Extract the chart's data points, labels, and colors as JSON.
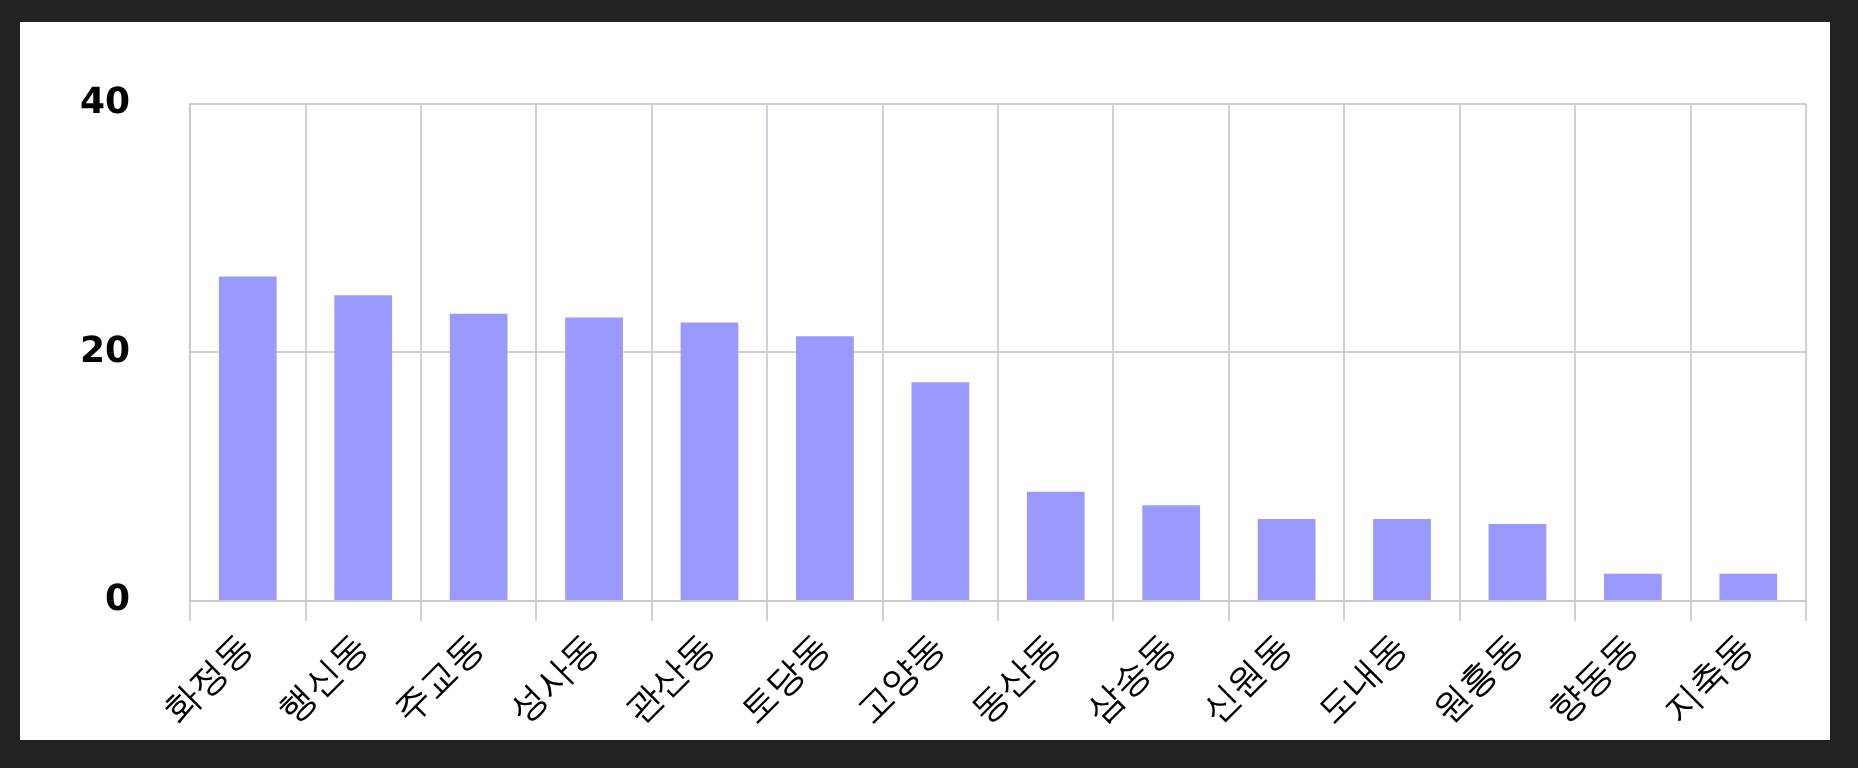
{
  "chart_data": {
    "type": "bar",
    "categories": [
      "화정동",
      "행신동",
      "주교동",
      "성사동",
      "관산동",
      "토당동",
      "고양동",
      "동산동",
      "삼송동",
      "신원동",
      "도내동",
      "원흥동",
      "향동동",
      "지축동"
    ],
    "values": [
      26.1,
      24.6,
      23.1,
      22.8,
      22.4,
      21.3,
      17.6,
      8.8,
      7.7,
      6.6,
      6.6,
      6.2,
      2.2,
      2.2
    ],
    "color": "#9999ff",
    "ylim": [
      0,
      40
    ],
    "yticks": [
      0,
      20,
      40
    ],
    "grid": true
  }
}
